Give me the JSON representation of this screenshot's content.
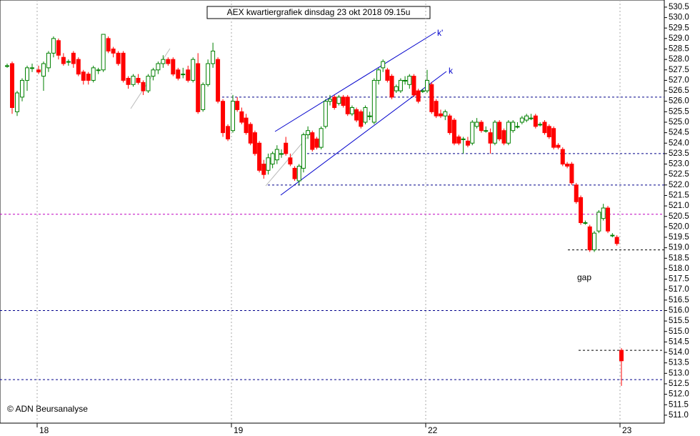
{
  "chart_data": {
    "type": "candlestick",
    "title": "AEX kwartiergrafiek dinsdag 23 okt 2018 09.15u",
    "credit": "© ADN Beursanalyse",
    "annotations": {
      "gap": "gap",
      "k": "k",
      "k2": "k'"
    },
    "up_color": "#008000",
    "down_color": "#ff0000",
    "ylim": [
      510.62,
      530.84
    ],
    "yticks": [
      {
        "value": 511,
        "label": "511.0"
      },
      511.5,
      {
        "value": 512,
        "label": "512.0"
      },
      512.5,
      {
        "value": 513,
        "label": "513.0"
      },
      513.5,
      {
        "value": 514,
        "label": "514.0"
      },
      514.5,
      {
        "value": 515,
        "label": "515.0"
      },
      515.5,
      {
        "value": 516,
        "label": "516.0"
      },
      516.5,
      {
        "value": 517,
        "label": "517.0"
      },
      517.5,
      {
        "value": 518,
        "label": "518.0"
      },
      518.5,
      {
        "value": 519,
        "label": "519.0"
      },
      519.5,
      {
        "value": 520,
        "label": "520.0"
      },
      520.5,
      {
        "value": 521,
        "label": "521.0"
      },
      521.5,
      {
        "value": 522,
        "label": "522.0"
      },
      522.5,
      {
        "value": 523,
        "label": "523.0"
      },
      523.5,
      {
        "value": 524,
        "label": "524.0"
      },
      524.5,
      {
        "value": 525,
        "label": "525.0"
      },
      525.5,
      {
        "value": 526,
        "label": "526.0"
      },
      526.5,
      {
        "value": 527,
        "label": "527.0"
      },
      527.5,
      {
        "value": 528,
        "label": "528.0"
      },
      528.5,
      {
        "value": 529,
        "label": "529.0"
      },
      529.5,
      {
        "value": 530,
        "label": "530.0"
      },
      530.5
    ],
    "levels": [
      {
        "value": 526.2,
        "color": "#00008b"
      },
      {
        "value": 523.5,
        "color": "#00008b"
      },
      {
        "value": 522.0,
        "color": "#00008b"
      },
      {
        "value": 520.6,
        "color": "#c000c0"
      },
      {
        "value": 518.9,
        "color": "#000000"
      },
      {
        "value": 516.0,
        "color": "#00008b"
      },
      {
        "value": 514.1,
        "color": "#000000"
      },
      {
        "value": 512.7,
        "color": "#00008b"
      }
    ],
    "days": [
      {
        "label": null,
        "candles": [
          [
            527.7,
            527.8,
            527.6,
            527.7
          ],
          [
            527.8,
            527.9,
            525.4,
            525.7
          ],
          [
            525.5,
            526.5,
            525.3,
            526.4
          ],
          [
            526.2,
            527.1,
            526.0,
            527.0
          ],
          [
            527.0,
            527.7,
            526.5,
            527.6
          ],
          [
            527.6,
            527.8,
            527.4,
            527.6
          ]
        ]
      },
      {
        "label": "18",
        "candles": [
          [
            527.5,
            527.7,
            527.3,
            527.4
          ],
          [
            527.2,
            527.9,
            526.5,
            527.8
          ],
          [
            527.6,
            528.4,
            527.4,
            528.3
          ],
          [
            528.3,
            529.1,
            528.1,
            529.0
          ],
          [
            528.9,
            529.0,
            528.0,
            528.2
          ],
          [
            528.1,
            528.3,
            527.7,
            527.8
          ],
          [
            527.9,
            528.0,
            527.7,
            527.9
          ],
          [
            528.3,
            528.4,
            527.6,
            527.8
          ],
          [
            528.0,
            528.1,
            527.2,
            527.3
          ],
          [
            527.4,
            527.5,
            526.8,
            527.0
          ],
          [
            527.3,
            527.4,
            526.8,
            527.0
          ],
          [
            527.0,
            527.7,
            526.9,
            527.6
          ],
          [
            527.5,
            527.6,
            527.3,
            527.5
          ],
          [
            527.5,
            529.2,
            527.4,
            529.2
          ],
          [
            529.0,
            529.1,
            528.3,
            528.4
          ],
          [
            528.5,
            528.6,
            528.1,
            528.3
          ],
          [
            528.3,
            528.4,
            527.7,
            527.8
          ],
          [
            528.3,
            528.4,
            526.9,
            527.0
          ],
          [
            527.1,
            527.2,
            526.6,
            526.8
          ],
          [
            526.8,
            527.3,
            526.7,
            527.2
          ],
          [
            527.1,
            527.3,
            526.8,
            526.9
          ],
          [
            526.9,
            527.0,
            526.3,
            526.5
          ],
          [
            526.5,
            527.3,
            526.4,
            527.2
          ],
          [
            527.2,
            527.6,
            527.0,
            527.5
          ],
          [
            527.5,
            527.9,
            527.3,
            527.8
          ],
          [
            527.8,
            528.2,
            527.6,
            528.0
          ],
          [
            528.0,
            528.1,
            527.7,
            527.8
          ],
          [
            528.0,
            528.1,
            527.2,
            527.3
          ],
          [
            527.5,
            527.6,
            527.0,
            527.1
          ],
          [
            527.3,
            527.6,
            527.1,
            527.3
          ],
          [
            527.5,
            527.7,
            526.9,
            527.0
          ],
          [
            527.0,
            528.1,
            526.9,
            528.0
          ],
          [
            527.8,
            528.3,
            525.4,
            525.5
          ],
          [
            525.6,
            526.9,
            525.5,
            526.8
          ],
          [
            526.8,
            528.0,
            526.7,
            527.8
          ],
          [
            527.8,
            528.8,
            527.6,
            528.4
          ],
          [
            528.0,
            528.1,
            525.9,
            526.0
          ],
          [
            526.0,
            526.1,
            524.3,
            524.5
          ],
          [
            524.8,
            524.9,
            524.1,
            524.2
          ]
        ]
      },
      {
        "label": "19",
        "candles": [
          [
            524.6,
            526.3,
            524.5,
            526.0
          ],
          [
            526.0,
            526.2,
            525.5,
            525.6
          ],
          [
            525.5,
            525.7,
            524.9,
            525.0
          ],
          [
            525.2,
            525.4,
            524.4,
            524.5
          ],
          [
            524.9,
            525.0,
            523.9,
            524.0
          ],
          [
            524.5,
            524.6,
            523.4,
            523.5
          ],
          [
            524.0,
            524.1,
            522.6,
            522.7
          ],
          [
            523.0,
            523.2,
            522.3,
            522.5
          ],
          [
            522.7,
            523.5,
            522.5,
            523.3
          ],
          [
            523.0,
            523.6,
            522.8,
            523.5
          ],
          [
            523.2,
            523.9,
            523.0,
            523.7
          ],
          [
            523.5,
            523.7,
            523.3,
            523.5
          ],
          [
            524.0,
            524.3,
            523.4,
            523.5
          ],
          [
            523.3,
            523.5,
            522.9,
            523.0
          ],
          [
            522.8,
            522.9,
            522.2,
            522.3
          ],
          [
            522.2,
            523.0,
            522.0,
            522.9
          ],
          [
            522.8,
            524.5,
            522.6,
            524.4
          ],
          [
            524.4,
            524.8,
            524.2,
            524.6
          ],
          [
            524.5,
            524.6,
            523.6,
            523.7
          ],
          [
            524.2,
            524.3,
            523.7,
            523.8
          ],
          [
            523.8,
            524.8,
            523.7,
            524.7
          ],
          [
            524.8,
            526.1,
            524.7,
            526.0
          ],
          [
            526.0,
            526.3,
            525.8,
            526.1
          ],
          [
            526.2,
            526.3,
            525.6,
            525.7
          ],
          [
            525.9,
            526.3,
            525.8,
            526.2
          ],
          [
            526.2,
            526.3,
            525.7,
            525.8
          ],
          [
            526.2,
            526.3,
            525.3,
            525.4
          ],
          [
            525.4,
            525.8,
            525.3,
            525.7
          ],
          [
            525.6,
            525.7,
            525.0,
            525.1
          ],
          [
            525.5,
            525.6,
            524.7,
            524.8
          ],
          [
            525.0,
            525.8,
            524.9,
            525.7
          ],
          [
            525.3,
            525.5,
            525.1,
            525.3
          ],
          [
            525.0,
            527.1,
            524.9,
            527.0
          ],
          [
            527.0,
            527.6,
            526.8,
            527.5
          ],
          [
            527.6,
            528.0,
            527.4,
            527.9
          ],
          [
            527.5,
            527.6,
            526.9,
            527.0
          ],
          [
            527.2,
            527.3,
            526.1,
            526.2
          ],
          [
            526.5,
            526.8,
            526.4,
            526.7
          ],
          [
            526.5,
            527.1,
            526.4,
            527.0
          ],
          [
            527.0,
            527.2,
            526.8,
            527.0
          ],
          [
            526.8,
            527.3,
            526.6,
            527.2
          ],
          [
            527.2,
            527.3,
            526.2,
            526.3
          ],
          [
            526.5,
            526.6,
            525.9,
            526.0
          ],
          [
            526.5,
            526.6,
            526.4,
            526.5
          ]
        ]
      },
      {
        "label": "22",
        "candles": [
          [
            526.5,
            527.5,
            526.4,
            527.0
          ],
          [
            526.8,
            526.9,
            525.4,
            525.5
          ],
          [
            526.0,
            526.1,
            525.2,
            525.3
          ],
          [
            525.4,
            525.6,
            525.2,
            525.3
          ],
          [
            525.3,
            525.6,
            525.1,
            525.5
          ],
          [
            525.3,
            525.4,
            524.4,
            524.5
          ],
          [
            525.1,
            525.2,
            523.9,
            524.0
          ],
          [
            524.3,
            524.4,
            523.9,
            524.0
          ],
          [
            524.2,
            524.3,
            523.5,
            524.2
          ],
          [
            524.1,
            524.3,
            523.8,
            523.9
          ],
          [
            524.0,
            525.1,
            523.9,
            525.0
          ],
          [
            524.8,
            525.2,
            524.7,
            525.0
          ],
          [
            525.0,
            525.1,
            524.5,
            524.6
          ],
          [
            524.6,
            524.8,
            524.5,
            524.6
          ],
          [
            524.5,
            524.7,
            523.5,
            524.0
          ],
          [
            524.0,
            525.1,
            523.9,
            525.0
          ],
          [
            525.0,
            525.1,
            524.1,
            524.2
          ],
          [
            524.6,
            524.7,
            523.9,
            524.0
          ],
          [
            524.0,
            525.1,
            523.9,
            525.0
          ],
          [
            524.6,
            525.1,
            524.5,
            525.0
          ],
          [
            524.8,
            525.0,
            524.7,
            524.8
          ],
          [
            525.0,
            525.3,
            524.9,
            525.2
          ],
          [
            525.1,
            525.4,
            525.0,
            525.3
          ],
          [
            525.2,
            525.4,
            525.1,
            525.2
          ],
          [
            525.3,
            525.4,
            524.7,
            524.8
          ],
          [
            524.9,
            525.0,
            524.8,
            524.9
          ],
          [
            525.0,
            525.1,
            524.4,
            524.5
          ],
          [
            524.8,
            524.9,
            524.2,
            524.3
          ],
          [
            524.7,
            524.8,
            523.7,
            523.8
          ],
          [
            523.9,
            524.0,
            523.7,
            523.8
          ],
          [
            523.7,
            523.8,
            522.9,
            523.0
          ],
          [
            523.0,
            523.1,
            522.8,
            522.9
          ],
          [
            523.0,
            523.1,
            522.0,
            522.1
          ],
          [
            522.0,
            522.1,
            521.1,
            521.2
          ],
          [
            521.4,
            521.5,
            520.1,
            520.2
          ],
          [
            520.2,
            520.3,
            520.1,
            520.2
          ],
          [
            520.0,
            520.1,
            518.8,
            518.9
          ],
          [
            518.9,
            519.8,
            518.8,
            519.7
          ],
          [
            519.8,
            520.8,
            519.7,
            520.7
          ],
          [
            520.4,
            521.1,
            520.3,
            520.9
          ],
          [
            520.9,
            521.0,
            519.7,
            519.8
          ],
          [
            519.6,
            519.7,
            519.5,
            519.6
          ],
          [
            519.5,
            519.6,
            519.1,
            519.2
          ]
        ]
      },
      {
        "label": "23",
        "candles": [
          [
            514.1,
            514.2,
            512.4,
            513.6
          ]
        ]
      }
    ]
  }
}
